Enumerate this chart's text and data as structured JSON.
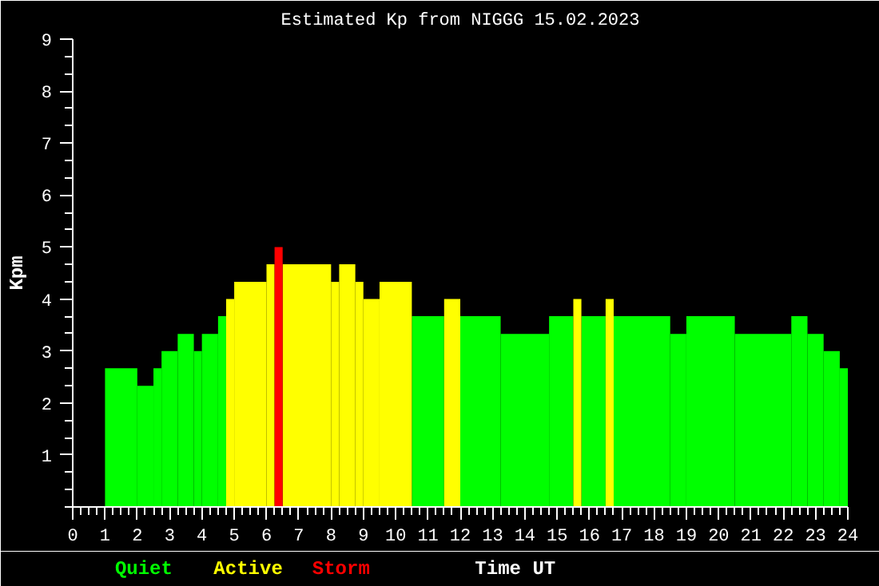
{
  "chart_data": {
    "type": "histogram",
    "title": "Estimated Kp from NIGGG 15.02.2023",
    "xlabel": "Time UT",
    "ylabel": "Kpm",
    "bins": [
      1,
      2,
      2.5,
      2.75,
      3.25,
      3.75,
      4,
      4.5,
      4.75,
      5,
      6,
      6.25,
      6.5,
      8,
      8.25,
      8.75,
      9,
      9.5,
      10.5,
      11.5,
      12,
      13.25,
      14.75,
      15.5,
      15.75,
      16.5,
      16.75,
      18.5,
      19,
      20.5,
      22.25,
      22.75,
      23.25,
      23.75,
      24
    ],
    "series": [
      {
        "name": "Quiet",
        "color": "#00ff00",
        "values": [
          2.67,
          2.33,
          2.67,
          3.0,
          3.33,
          3.0,
          3.33,
          3.67,
          null,
          null,
          null,
          null,
          null,
          null,
          null,
          null,
          null,
          null,
          3.67,
          null,
          3.67,
          3.33,
          3.67,
          null,
          3.67,
          null,
          3.67,
          3.33,
          3.67,
          3.33,
          3.67,
          3.33,
          3.0,
          2.67
        ]
      },
      {
        "name": "Active",
        "color": "#ffff00",
        "values": [
          null,
          null,
          null,
          null,
          null,
          null,
          null,
          null,
          4.0,
          4.33,
          4.67,
          null,
          4.67,
          4.33,
          4.67,
          4.33,
          4.0,
          4.33,
          null,
          4.0,
          null,
          null,
          null,
          4.0,
          null,
          4.0,
          null,
          null,
          null,
          null,
          null,
          null,
          null,
          null
        ]
      },
      {
        "name": "Storm",
        "color": "#ff0000",
        "values": [
          null,
          null,
          null,
          null,
          null,
          null,
          null,
          null,
          null,
          null,
          null,
          5.0,
          null,
          null,
          null,
          null,
          null,
          null,
          null,
          null,
          null,
          null,
          null,
          null,
          null,
          null,
          null,
          null,
          null,
          null,
          null,
          null,
          null,
          null
        ]
      }
    ],
    "xlim": [
      0,
      24
    ],
    "xticks": [
      0,
      1,
      2,
      3,
      4,
      5,
      6,
      7,
      8,
      9,
      10,
      11,
      12,
      13,
      14,
      15,
      16,
      17,
      18,
      19,
      20,
      21,
      22,
      23,
      24
    ],
    "ylim": [
      0,
      9
    ],
    "yticks": [
      1,
      2,
      3,
      4,
      5,
      6,
      7,
      8,
      9
    ]
  }
}
